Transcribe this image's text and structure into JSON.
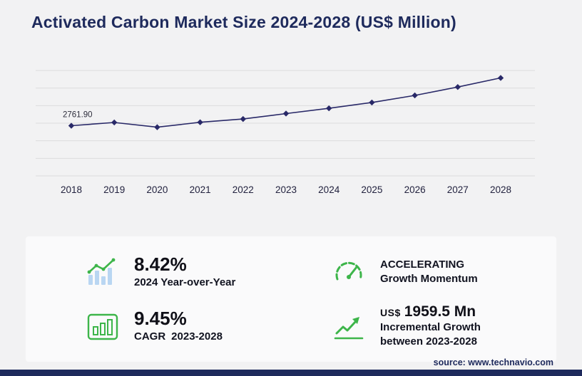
{
  "header": {
    "title": "Activated Carbon Market Size 2024-2028 (US$ Million)"
  },
  "chart_data": {
    "type": "line",
    "title": "Activated Carbon Market Size 2024-2028 (US$ Million)",
    "xlabel": "",
    "ylabel": "US$ Million",
    "x_labels": [
      "2018",
      "2019",
      "2020",
      "2021",
      "2022",
      "2023",
      "2024",
      "2025",
      "2026",
      "2027",
      "2028"
    ],
    "values": [
      2761.9,
      2940,
      2680,
      2950,
      3130,
      3431,
      3720,
      4040,
      4430,
      4890,
      5390.5
    ],
    "annotation": {
      "x_index": 0,
      "text": "2761.90"
    },
    "ylim": [
      0,
      5800
    ],
    "gridlines": 7,
    "grid": "horizontal",
    "legend": "none",
    "marker": "diamond"
  },
  "stats": {
    "yoy": {
      "value": "8.42%",
      "label": "2024 Year-over-Year"
    },
    "momentum": {
      "line1": "ACCELERATING",
      "line2": "Growth Momentum"
    },
    "cagr": {
      "value": "9.45%",
      "label_prefix": "CAGR",
      "label_range": "2023-2028"
    },
    "incremental": {
      "currency": "US$",
      "value": "1959.5 Mn",
      "label_line1": "Incremental Growth",
      "label_line2": "between 2023-2028"
    }
  },
  "footer": {
    "source_text": "source: www.technavio.com"
  },
  "colors": {
    "navy": "#1e2a5c",
    "line": "#292968",
    "grid": "#dcdcdd",
    "green": "#3db54a",
    "light_blue_bars": "#b9d6f2"
  }
}
